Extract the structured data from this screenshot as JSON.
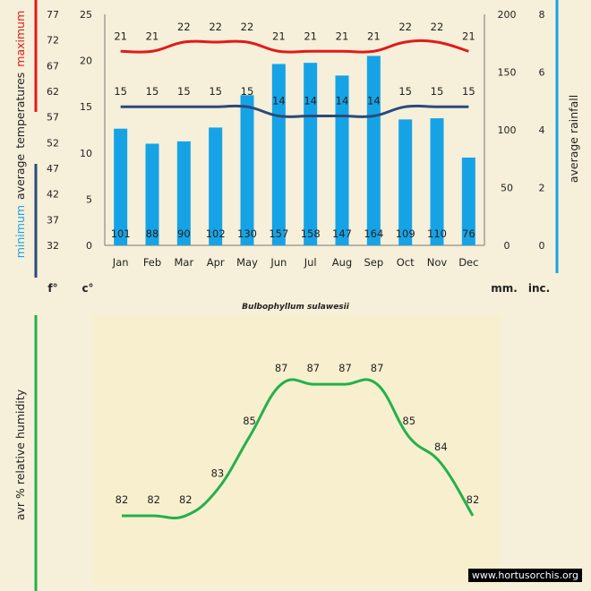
{
  "subtitle": "Bulbophyllum sulawesii",
  "watermark": "www.hortusorchis.org",
  "colors": {
    "max_line": "#e01b1b",
    "min_line": "#2a4a7a",
    "bars": "#16a3e6",
    "humidity": "#22b14c",
    "humidity_panel": "#f8efcf",
    "axis_text": "#222222"
  },
  "chart_data": [
    {
      "type": "bar",
      "title": "",
      "categories": [
        "Jan",
        "Feb",
        "Mar",
        "Apr",
        "May",
        "Jun",
        "Jul",
        "Aug",
        "Sep",
        "Oct",
        "Nov",
        "Dec"
      ],
      "series": [
        {
          "name": "maximum average temperature (°C)",
          "type": "line",
          "axis": "celsius",
          "values": [
            21,
            21,
            22,
            22,
            22,
            21,
            21,
            21,
            21,
            22,
            22,
            21
          ]
        },
        {
          "name": "minimum average temperature (°C)",
          "type": "line",
          "axis": "celsius",
          "values": [
            15,
            15,
            15,
            15,
            15,
            14,
            14,
            14,
            14,
            15,
            15,
            15
          ]
        },
        {
          "name": "average rainfall (mm)",
          "type": "bar",
          "axis": "mm",
          "values": [
            101,
            88,
            90,
            102,
            130,
            157,
            158,
            147,
            164,
            109,
            110,
            76
          ]
        }
      ],
      "axes": {
        "fahrenheit": {
          "label": "f°",
          "ticks": [
            32,
            37,
            42,
            47,
            52,
            57,
            62,
            67,
            72,
            77
          ]
        },
        "celsius": {
          "label": "c°",
          "ticks": [
            0,
            5,
            10,
            15,
            20,
            25
          ],
          "ylim": [
            0,
            25
          ]
        },
        "mm": {
          "label": "mm.",
          "ticks": [
            0,
            50,
            100,
            150,
            200
          ],
          "ylim": [
            0,
            200
          ]
        },
        "inches": {
          "label": "inc.",
          "ticks": [
            0,
            2,
            4,
            6,
            8
          ]
        }
      },
      "left_label": {
        "minimum": "minimum",
        "average": "average",
        "temperatures": "temperatures",
        "maximum": "maximum"
      },
      "right_label": "average rainfall",
      "grid": false
    },
    {
      "type": "line",
      "title": "",
      "ylabel": "avr % relative humidity",
      "categories": [
        "Jan",
        "Feb",
        "Mar",
        "Apr",
        "May",
        "Jun",
        "Jul",
        "Aug",
        "Sep",
        "Oct",
        "Nov",
        "Dec"
      ],
      "values": [
        82,
        82,
        82,
        83,
        85,
        87,
        87,
        87,
        87,
        85,
        84,
        82
      ],
      "ylim": [
        80.5,
        88.5
      ]
    }
  ]
}
